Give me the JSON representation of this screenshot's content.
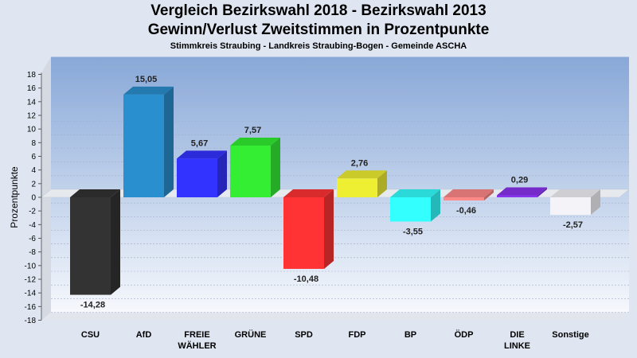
{
  "title_line1": "Vergleich Bezirkswahl 2018 - Bezirkswahl 2013",
  "title_line2": "Gewinn/Verlust Zweitstimmen in Prozentpunkte",
  "subtitle": "Stimmkreis Straubing - Landkreis Straubing-Bogen - Gemeinde ASCHA",
  "chart_data": {
    "type": "bar",
    "ylabel": "Prozentpunkte",
    "ylim": [
      -18,
      18
    ],
    "ytick_step": 2,
    "grid": true,
    "categories": [
      [
        "CSU"
      ],
      [
        "AfD"
      ],
      [
        "FREIE",
        "WÄHLER"
      ],
      [
        "GRÜNE"
      ],
      [
        "SPD"
      ],
      [
        "FDP"
      ],
      [
        "BP"
      ],
      [
        "ÖDP"
      ],
      [
        "DIE",
        "LINKE"
      ],
      [
        "Sonstige"
      ]
    ],
    "values": [
      -14.28,
      15.05,
      5.67,
      7.57,
      -10.48,
      2.76,
      -3.55,
      -0.46,
      0.29,
      -2.57
    ],
    "value_labels": [
      "-14,28",
      "15,05",
      "5,67",
      "7,57",
      "-10,48",
      "2,76",
      "-3,55",
      "-0,46",
      "0,29",
      "-2,57"
    ],
    "colors": [
      "#333333",
      "#2a8fce",
      "#3333ff",
      "#33ee33",
      "#ff3333",
      "#eeee33",
      "#33ffff",
      "#ff8888",
      "#8833ee",
      "#f4f4f8"
    ]
  }
}
